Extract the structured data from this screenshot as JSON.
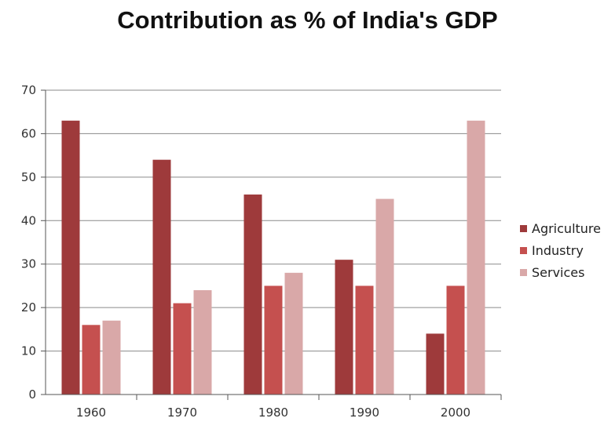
{
  "chart_data": {
    "type": "bar",
    "title": "Contribution as % of India's GDP",
    "xlabel": "",
    "ylabel": "",
    "categories": [
      "1960",
      "1970",
      "1980",
      "1990",
      "2000"
    ],
    "series": [
      {
        "name": "Agriculture",
        "values": [
          63,
          54,
          46,
          31,
          14
        ],
        "color": "#9e3a3b"
      },
      {
        "name": "Industry",
        "values": [
          16,
          21,
          25,
          25,
          25
        ],
        "color": "#c5504f"
      },
      {
        "name": "Services",
        "values": [
          17,
          24,
          28,
          45,
          63
        ],
        "color": "#d9a8a8"
      }
    ],
    "ylim": [
      0,
      70
    ],
    "yticks": [
      "0",
      "10",
      "20",
      "30",
      "40",
      "50",
      "60",
      "70"
    ],
    "grid": true,
    "legend": "right"
  }
}
